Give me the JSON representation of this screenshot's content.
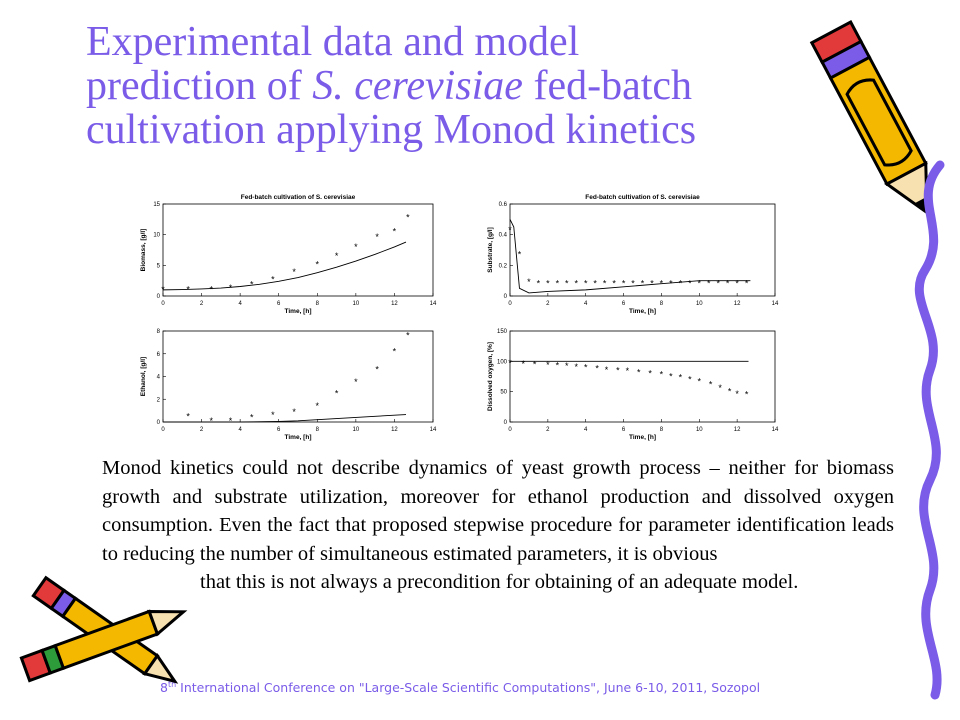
{
  "title": {
    "line1": "Experimental data and model",
    "line2_pre": "prediction of ",
    "line2_italic": "S. cerevisiae",
    "line2_post": " fed-batch",
    "line3": "cultivation applying Monod kinetics"
  },
  "body_text": {
    "main": "Monod kinetics could not describe dynamics of yeast growth process – neither for biomass growth and substrate utilization, moreover for ethanol production and dissolved oxygen consumption. Even the fact that proposed stepwise procedure for parameter identification leads to reducing the number of simultaneous estimated parameters, it is obvious",
    "indented": "that this is not always a precondition for obtaining of an adequate model."
  },
  "footer": {
    "prefix": "8",
    "sup": "th",
    "text": " International Conference on \"Large-Scale Scientific Computations\", June 6-10, 2011, Sozopol"
  },
  "decorations": {
    "pencil_top_right": "pencil-icon",
    "pencils_bottom_left": "crossed-pencils-icon",
    "squiggle_right": "squiggle-line-icon"
  },
  "colors": {
    "title": "#7a5ce8",
    "footer": "#7a5ce8",
    "pencil_body": "#f5b800",
    "pencil_band": "#7a5ce8",
    "pencil_eraser": "#e23a3a",
    "squiggle": "#7a5ce8"
  },
  "chart_data": [
    {
      "type": "scatter",
      "title": "Fed-batch cultivation of S. cerevisiae",
      "xlabel": "Time, [h]",
      "ylabel": "Biomass, [g/l]",
      "xlim": [
        0,
        14
      ],
      "ylim": [
        0,
        15
      ],
      "xticks": [
        "0",
        "2",
        "4",
        "6",
        "8",
        "10",
        "12",
        "14"
      ],
      "yticks": [
        "0",
        "5",
        "10",
        "15"
      ],
      "series": [
        {
          "role": "experimental",
          "marker": "*",
          "x": [
            0,
            1.3,
            2.5,
            3.5,
            4.6,
            5.7,
            6.8,
            8.0,
            9.0,
            10.0,
            11.1,
            12.0,
            12.7
          ],
          "y": [
            1.1,
            1.1,
            1.1,
            1.3,
            1.9,
            2.7,
            3.9,
            5.1,
            6.5,
            8.0,
            9.6,
            10.5,
            12.8
          ]
        },
        {
          "role": "model",
          "marker": "line",
          "x": [
            0,
            1,
            2,
            3,
            4,
            5,
            6,
            7,
            8,
            9,
            10,
            11,
            12,
            12.6
          ],
          "y": [
            1.0,
            1.05,
            1.15,
            1.3,
            1.55,
            1.9,
            2.4,
            3.0,
            3.8,
            4.7,
            5.7,
            6.8,
            8.0,
            8.8
          ]
        }
      ]
    },
    {
      "type": "scatter",
      "title": "Fed-batch cultivation of S. cerevisiae",
      "xlabel": "Time, [h]",
      "ylabel": "Substrate, [g/l]",
      "xlim": [
        0,
        14
      ],
      "ylim": [
        0,
        0.6
      ],
      "xticks": [
        "0",
        "2",
        "4",
        "6",
        "8",
        "10",
        "12",
        "14"
      ],
      "yticks": [
        "0",
        "0.2",
        "0.4",
        "0.6"
      ],
      "series": [
        {
          "role": "experimental",
          "marker": "*",
          "x": [
            0,
            0.5,
            1.0,
            1.5,
            2.0,
            2.5,
            3.0,
            3.5,
            4.0,
            4.5,
            5.0,
            5.5,
            6.0,
            6.5,
            7.0,
            7.5,
            8.0,
            8.5,
            9.0,
            9.5,
            10.0,
            10.5,
            11.0,
            11.5,
            12.0,
            12.5
          ],
          "y": [
            0.43,
            0.27,
            0.09,
            0.08,
            0.08,
            0.08,
            0.08,
            0.08,
            0.08,
            0.08,
            0.08,
            0.08,
            0.08,
            0.08,
            0.08,
            0.08,
            0.08,
            0.08,
            0.08,
            0.08,
            0.08,
            0.08,
            0.08,
            0.08,
            0.08,
            0.08
          ]
        },
        {
          "role": "model",
          "marker": "line",
          "x": [
            0,
            0.2,
            0.5,
            1.0,
            2.0,
            4.0,
            6.0,
            8.0,
            10.0,
            12.0,
            12.7
          ],
          "y": [
            0.5,
            0.45,
            0.05,
            0.02,
            0.03,
            0.04,
            0.06,
            0.08,
            0.1,
            0.1,
            0.1
          ]
        }
      ]
    },
    {
      "type": "scatter",
      "title": "",
      "xlabel": "Time, [h]",
      "ylabel": "Ethanol, [g/l]",
      "xlim": [
        0,
        14
      ],
      "ylim": [
        0,
        8
      ],
      "xticks": [
        "0",
        "2",
        "4",
        "6",
        "8",
        "10",
        "12",
        "14"
      ],
      "yticks": [
        "0",
        "2",
        "4",
        "6",
        "8"
      ],
      "series": [
        {
          "role": "experimental",
          "marker": "*",
          "x": [
            1.3,
            2.5,
            3.5,
            4.6,
            5.7,
            6.8,
            8.0,
            9.0,
            10.0,
            11.1,
            12.0,
            12.7
          ],
          "y": [
            0.5,
            0.1,
            0.1,
            0.4,
            0.6,
            0.9,
            1.4,
            2.5,
            3.5,
            4.6,
            6.2,
            7.6
          ]
        },
        {
          "role": "model",
          "marker": "line",
          "x": [
            0,
            2,
            4,
            6,
            7,
            8,
            9,
            10,
            11,
            12,
            12.6
          ],
          "y": [
            0,
            0,
            0,
            0.05,
            0.1,
            0.2,
            0.3,
            0.4,
            0.5,
            0.6,
            0.65
          ]
        }
      ]
    },
    {
      "type": "scatter",
      "title": "",
      "xlabel": "Time, [h]",
      "ylabel": "Dissolved oxygen, [%]",
      "xlim": [
        0,
        14
      ],
      "ylim": [
        0,
        150
      ],
      "xticks": [
        "0",
        "2",
        "4",
        "6",
        "8",
        "10",
        "12",
        "14"
      ],
      "yticks": [
        "0",
        "50",
        "100",
        "150"
      ],
      "series": [
        {
          "role": "experimental",
          "marker": "*",
          "x": [
            0,
            0.7,
            1.3,
            2.0,
            2.5,
            3.0,
            3.5,
            4.0,
            4.6,
            5.1,
            5.7,
            6.2,
            6.8,
            7.4,
            8.0,
            8.5,
            9.0,
            9.5,
            10.0,
            10.6,
            11.1,
            11.6,
            12.0,
            12.5
          ],
          "y": [
            97,
            96,
            95,
            94,
            93,
            92,
            91,
            90,
            88,
            86,
            85,
            84,
            82,
            80,
            78,
            75,
            73,
            70,
            67,
            62,
            56,
            50,
            46,
            45
          ]
        },
        {
          "role": "model",
          "marker": "line",
          "x": [
            0,
            12.6
          ],
          "y": [
            100,
            100
          ]
        }
      ]
    }
  ]
}
